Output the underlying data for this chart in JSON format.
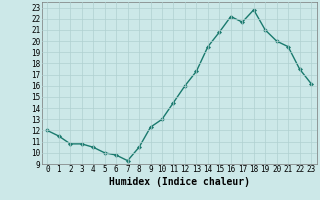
{
  "x": [
    0,
    1,
    2,
    3,
    4,
    5,
    6,
    7,
    8,
    9,
    10,
    11,
    12,
    13,
    14,
    15,
    16,
    17,
    18,
    19,
    20,
    21,
    22,
    23
  ],
  "y": [
    12,
    11.5,
    10.8,
    10.8,
    10.5,
    10.0,
    9.8,
    9.3,
    10.5,
    12.3,
    13.0,
    14.5,
    16.0,
    17.3,
    19.5,
    20.8,
    22.2,
    21.7,
    22.8,
    21.0,
    20.0,
    19.5,
    17.5,
    16.2
  ],
  "line_color": "#1a7a6e",
  "marker": "D",
  "marker_size": 2.2,
  "bg_color": "#cce8e8",
  "grid_color": "#b0d0d0",
  "xlabel": "Humidex (Indice chaleur)",
  "ylim": [
    9,
    23.5
  ],
  "xlim": [
    -0.5,
    23.5
  ],
  "yticks": [
    9,
    10,
    11,
    12,
    13,
    14,
    15,
    16,
    17,
    18,
    19,
    20,
    21,
    22,
    23
  ],
  "xticks": [
    0,
    1,
    2,
    3,
    4,
    5,
    6,
    7,
    8,
    9,
    10,
    11,
    12,
    13,
    14,
    15,
    16,
    17,
    18,
    19,
    20,
    21,
    22,
    23
  ],
  "xlabel_fontsize": 7,
  "tick_fontsize": 5.5,
  "line_width": 1.0
}
